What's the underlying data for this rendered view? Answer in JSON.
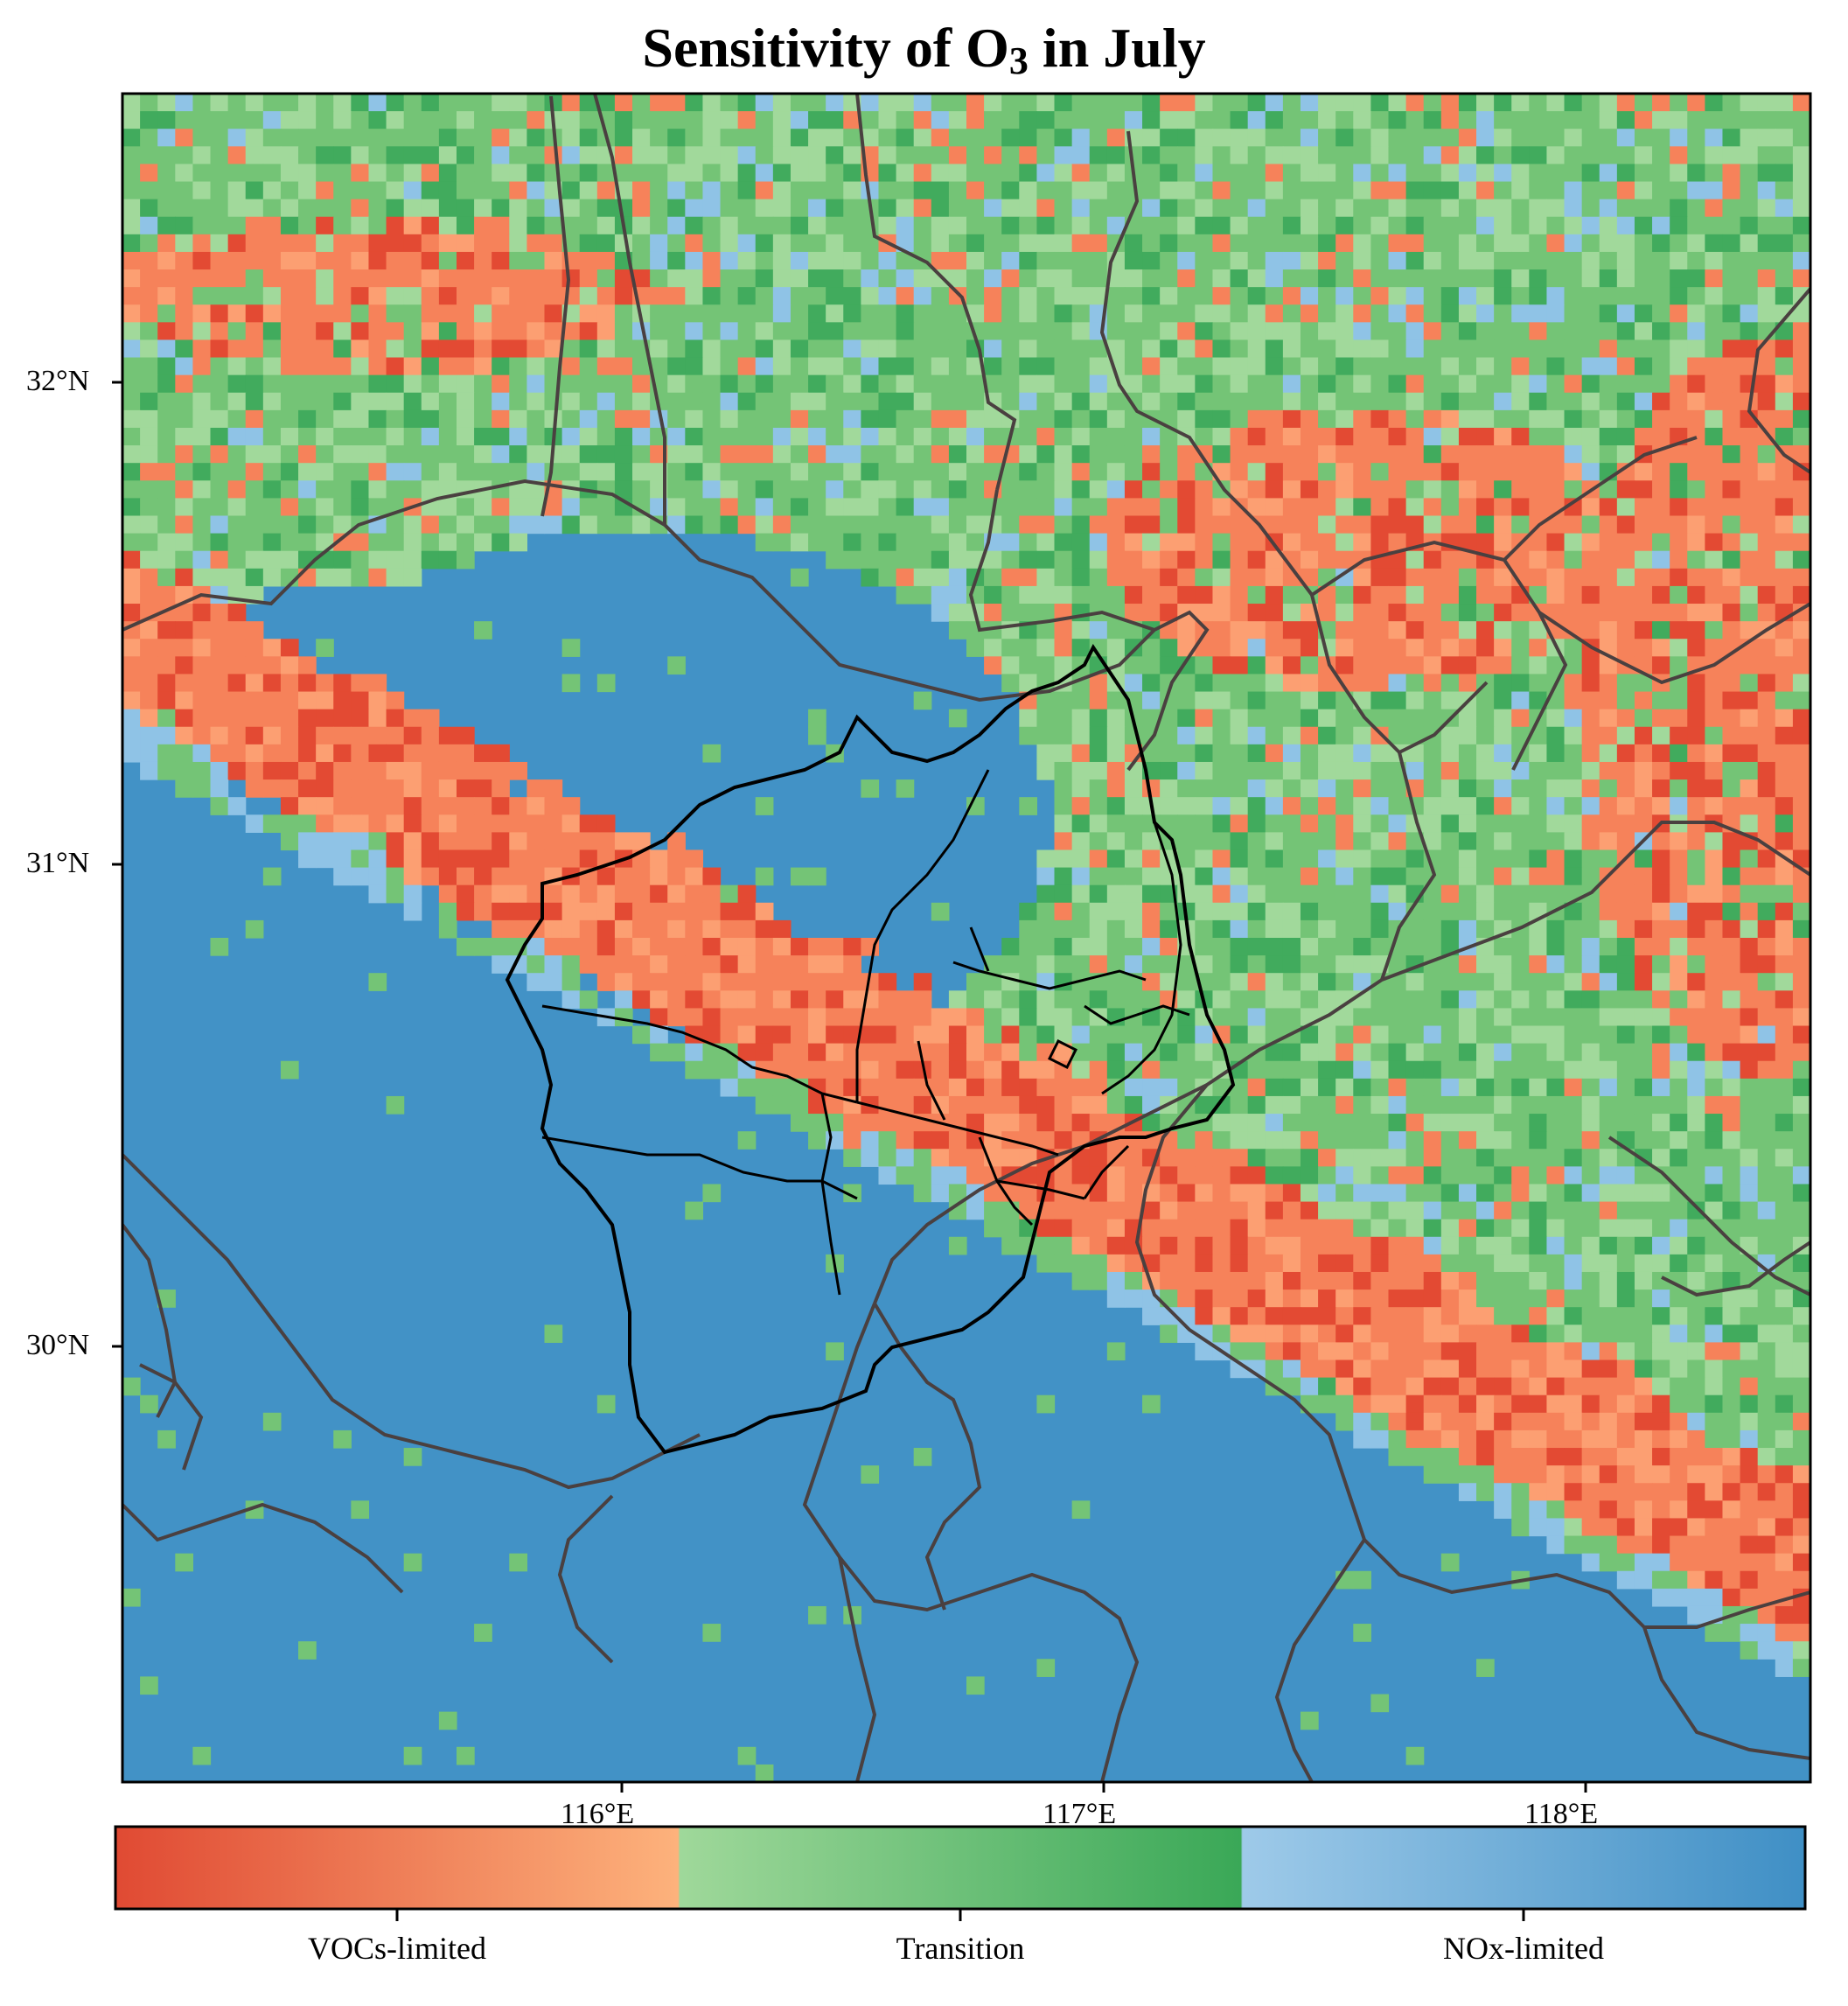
{
  "title": {
    "prefix": "Sensitivity of O",
    "subscript": "3",
    "suffix": " in July"
  },
  "axes": {
    "lat_ticks": [
      "32°N",
      "31°N",
      "30°N"
    ],
    "lon_ticks": [
      "116°E",
      "117°E",
      "118°E"
    ]
  },
  "colorbar": {
    "labels": [
      "VOCs-limited",
      "Transition",
      "NOx-limited"
    ],
    "colors": {
      "vocs_dark": "#e04a33",
      "vocs_light": "#fdb27c",
      "transition_light": "#9fd89a",
      "transition_dark": "#3aa857",
      "nox_light": "#9ecae9",
      "nox_dark": "#3f8fc5"
    }
  },
  "map_colors": {
    "nox": "#4292c6",
    "nox_light": "#8fc3e6",
    "transition": "#74c476",
    "transition_dark": "#41ab5d",
    "transition_light": "#a1d99b",
    "vocs": "#f6825a",
    "vocs_dark": "#e34a33",
    "vocs_light": "#fc9f72",
    "boundary": "#4a4040",
    "study_boundary": "#000000"
  }
}
